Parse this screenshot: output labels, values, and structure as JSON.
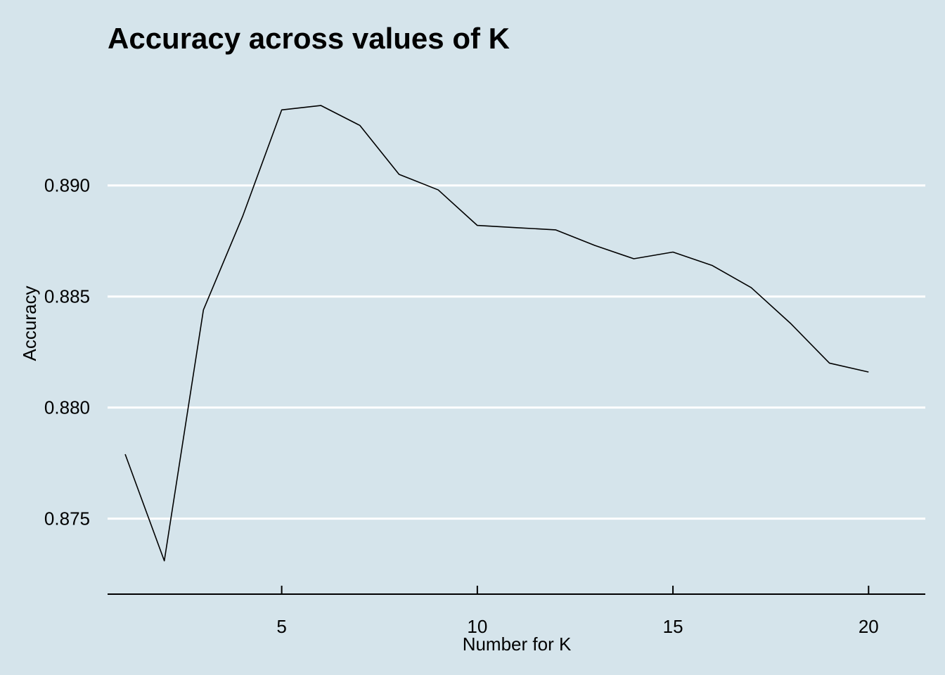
{
  "chart_data": {
    "type": "line",
    "title": "Accuracy across values of K",
    "xlabel": "Number for K",
    "ylabel": "Accuracy",
    "x": [
      1,
      2,
      3,
      4,
      5,
      6,
      7,
      8,
      9,
      10,
      11,
      12,
      13,
      14,
      15,
      16,
      17,
      18,
      19,
      20
    ],
    "series": [
      {
        "values": [
          0.8779,
          0.8731,
          0.8844,
          0.8886,
          0.8934,
          0.8936,
          0.8927,
          0.8905,
          0.8898,
          0.8882,
          0.8881,
          0.888,
          0.8873,
          0.8867,
          0.887,
          0.8864,
          0.8854,
          0.8838,
          0.882,
          0.8816
        ]
      }
    ],
    "xlim": [
      0.55,
      21.45
    ],
    "ylim": [
      0.8716,
      0.8955
    ],
    "xticks": [
      5,
      10,
      15,
      20
    ],
    "xtick_labels": [
      "5",
      "10",
      "15",
      "20"
    ],
    "yticks": [
      0.875,
      0.88,
      0.885,
      0.89
    ],
    "ytick_labels": [
      "0.875",
      "0.880",
      "0.885",
      "0.890"
    ],
    "grid": "horizontal-major",
    "legend": "none",
    "colors": {
      "background": "#d5e4eb",
      "gridline": "#ffffff",
      "line": "#000000",
      "axis": "#000000"
    }
  }
}
